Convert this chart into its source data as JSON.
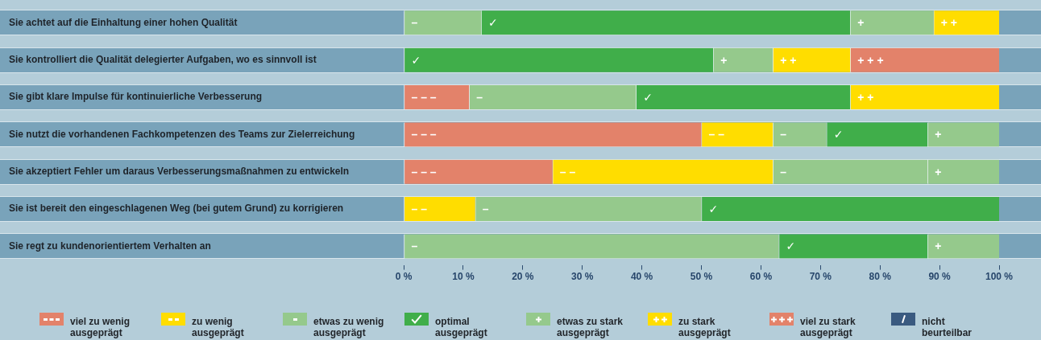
{
  "chart_data": {
    "type": "bar",
    "orientation": "horizontal",
    "stacked": true,
    "categories": [
      "Sie achtet auf die Einhaltung einer hohen Qualität",
      "Sie kontrolliert die Qualität delegierter Aufgaben, wo es sinnvoll ist",
      "Sie gibt klare Impulse für kontinuierliche Verbesserung",
      "Sie nutzt die vorhandenen Fachkompetenzen des Teams zur Zielerreichung",
      "Sie akzeptiert Fehler um daraus Verbesserungsmaßnahmen zu entwickeln",
      "Sie ist bereit den eingeschlagenen Weg (bei gutem Grund) zu korrigieren",
      "Sie regt zu kundenorientiertem Verhalten an"
    ],
    "series": [
      {
        "name": "viel zu wenig ausgeprägt",
        "color": "#e3826a",
        "values": [
          null,
          null,
          11,
          50,
          25,
          null,
          null
        ],
        "value_labels": [
          null,
          null,
          "– – –",
          "– – –",
          "– – –",
          null,
          null
        ]
      },
      {
        "name": "zu wenig ausgeprägt",
        "color": "#ffdd00",
        "values": [
          null,
          null,
          null,
          12,
          37,
          12,
          null
        ],
        "value_labels": [
          null,
          null,
          null,
          "– –",
          "– –",
          "– –",
          null
        ]
      },
      {
        "name": "etwas zu wenig ausgeprägt",
        "color": "#95c98c",
        "values": [
          13,
          null,
          28,
          9,
          26,
          38,
          63
        ],
        "value_labels": [
          "–",
          null,
          "–",
          "–",
          "–",
          "–",
          "–"
        ]
      },
      {
        "name": "optimal ausgeprägt",
        "color": "#40ae4a",
        "values": [
          62,
          52,
          36,
          17,
          null,
          50,
          25
        ],
        "value_labels": [
          "✓",
          "✓",
          "✓",
          "✓",
          null,
          "✓",
          "✓"
        ]
      },
      {
        "name": "etwas zu stark ausgeprägt",
        "color": "#95c98c",
        "values": [
          14,
          10,
          null,
          12,
          12,
          null,
          12
        ],
        "value_labels": [
          "+",
          "+",
          null,
          "+",
          "+",
          null,
          "+"
        ]
      },
      {
        "name": "zu stark ausgeprägt",
        "color": "#ffdd00",
        "values": [
          11,
          13,
          25,
          null,
          null,
          null,
          null
        ],
        "value_labels": [
          "+ +",
          "+ +",
          "+ +",
          null,
          null,
          null,
          null
        ]
      },
      {
        "name": "viel zu stark ausgeprägt",
        "color": "#e3826a",
        "values": [
          null,
          25,
          null,
          null,
          null,
          null,
          null
        ],
        "value_labels": [
          null,
          "+ + +",
          null,
          null,
          null,
          null,
          null
        ]
      },
      {
        "name": "nicht beurteilbar",
        "color": "#3a5a80",
        "values": [
          null,
          null,
          null,
          null,
          null,
          null,
          null
        ]
      }
    ],
    "xlim": [
      0,
      100
    ],
    "xticks": [
      {
        "value": 0,
        "label": "0 %"
      },
      {
        "value": 10,
        "label": "10 %"
      },
      {
        "value": 20,
        "label": "20 %"
      },
      {
        "value": 30,
        "label": "30 %"
      },
      {
        "value": 40,
        "label": "40 %"
      },
      {
        "value": 50,
        "label": "50 %"
      },
      {
        "value": 60,
        "label": "60 %"
      },
      {
        "value": 70,
        "label": "70 %"
      },
      {
        "value": 80,
        "label": "80 %"
      },
      {
        "value": 90,
        "label": "90 %"
      },
      {
        "value": 100,
        "label": "100 %"
      }
    ],
    "legend": "bottom"
  }
}
